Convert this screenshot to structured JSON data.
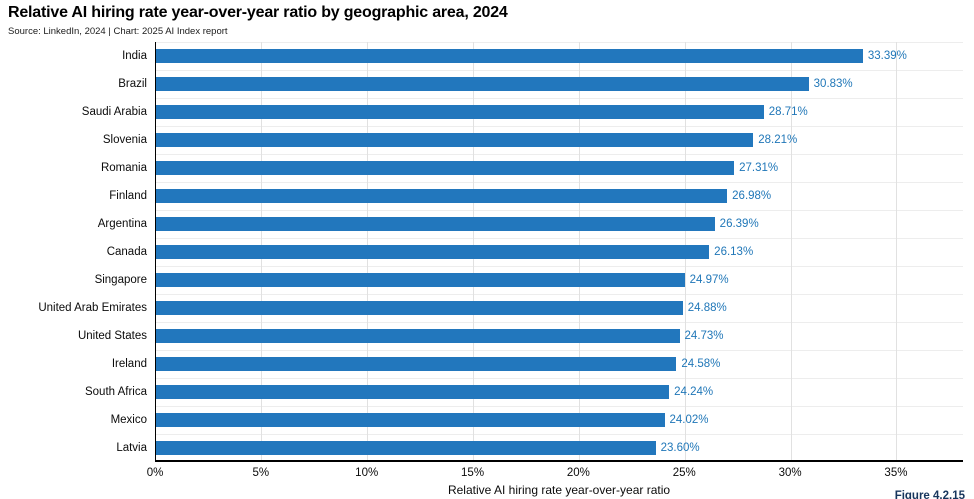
{
  "header": {
    "title": "Relative AI hiring rate year-over-year ratio by geographic area, 2024",
    "source": "Source: LinkedIn, 2024 | Chart: 2025 AI Index report"
  },
  "figure_label": "Figure 4.2.15",
  "chart_data": {
    "type": "bar",
    "orientation": "horizontal",
    "title": "Relative AI hiring rate year-over-year ratio by geographic area, 2024",
    "source": "Source: LinkedIn, 2024 | Chart: 2025 AI Index report",
    "categories": [
      "India",
      "Brazil",
      "Saudi Arabia",
      "Slovenia",
      "Romania",
      "Finland",
      "Argentina",
      "Canada",
      "Singapore",
      "United Arab Emirates",
      "United States",
      "Ireland",
      "South Africa",
      "Mexico",
      "Latvia"
    ],
    "values": [
      33.39,
      30.83,
      28.71,
      28.21,
      27.31,
      26.98,
      26.39,
      26.13,
      24.97,
      24.88,
      24.73,
      24.58,
      24.24,
      24.02,
      23.6
    ],
    "value_labels": [
      "33.39%",
      "30.83%",
      "28.71%",
      "28.21%",
      "27.31%",
      "26.98%",
      "26.39%",
      "26.13%",
      "24.97%",
      "24.88%",
      "24.73%",
      "24.58%",
      "24.24%",
      "24.02%",
      "23.60%"
    ],
    "xlabel": "Relative AI hiring rate year-over-year ratio",
    "x_ticks": [
      0,
      5,
      10,
      15,
      20,
      25,
      30,
      35
    ],
    "x_tick_labels": [
      "0%",
      "5%",
      "10%",
      "15%",
      "20%",
      "25%",
      "30%",
      "35%"
    ],
    "xlim": [
      0,
      38.2
    ],
    "grid": true,
    "legend": "none",
    "bar_color": "#2277bd",
    "value_label_color": "#2077b8"
  }
}
